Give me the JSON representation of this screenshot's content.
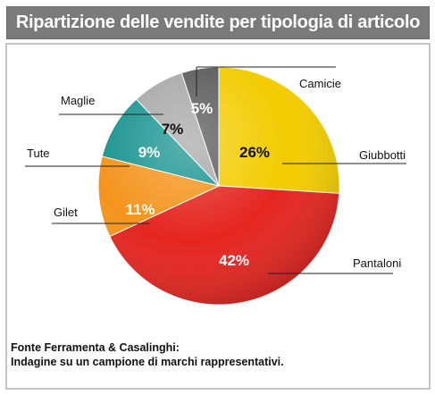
{
  "title": "Ripartizione delle vendite per tipologia di articolo",
  "source": {
    "line1": "Fonte Ferramenta & Casalinghi:",
    "line2": "Indagine su un campione di marchi rappresentativi."
  },
  "chart_data": {
    "type": "pie",
    "title": "Ripartizione delle vendite per tipologia di articolo",
    "slices": [
      {
        "label": "Giubbotti",
        "value": 26,
        "value_label": "26%",
        "color": "#f2cc00"
      },
      {
        "label": "Pantaloni",
        "value": 42,
        "value_label": "42%",
        "color": "#e52520"
      },
      {
        "label": "Gilet",
        "value": 11,
        "value_label": "11%",
        "color": "#f4941c"
      },
      {
        "label": "Tute",
        "value": 9,
        "value_label": "9%",
        "color": "#1a9490"
      },
      {
        "label": "Maglie",
        "value": 7,
        "value_label": "7%",
        "color": "#a8a8a8"
      },
      {
        "label": "Camicie",
        "value": 5,
        "value_label": "5%",
        "color": "#5a5a5a"
      }
    ],
    "start_angle_deg": 0,
    "direction": "clockwise",
    "legend": "callout-labels"
  }
}
